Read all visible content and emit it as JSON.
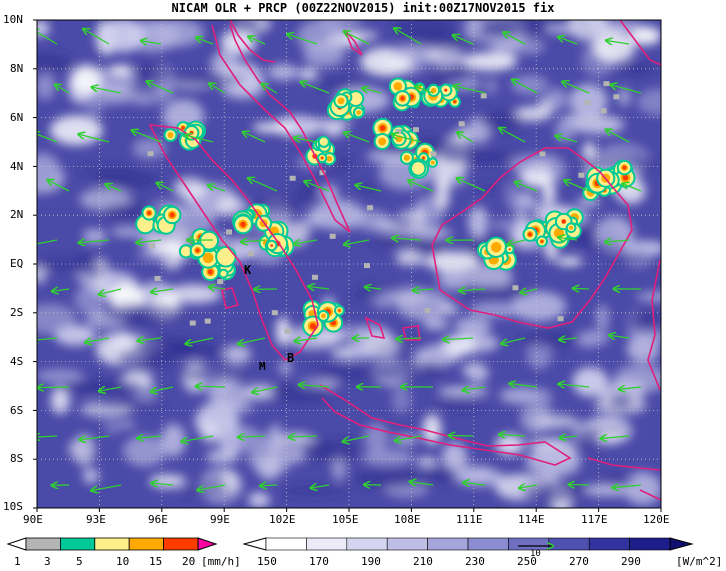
{
  "title": "NICAM OLR + PRCP (00Z22NOV2015) init:00Z17NOV2015 fix",
  "lat_labels": [
    "10N",
    "8N",
    "6N",
    "4N",
    "2N",
    "EQ",
    "2S",
    "4S",
    "6S",
    "8S",
    "10S"
  ],
  "lon_labels": [
    "90E",
    "93E",
    "96E",
    "99E",
    "102E",
    "105E",
    "108E",
    "111E",
    "114E",
    "117E",
    "120E"
  ],
  "markers": [
    "K",
    "M",
    "B"
  ],
  "precip_colorbar": {
    "ticks": [
      "1",
      "3",
      "5",
      "10",
      "15",
      "20"
    ],
    "unit": "[mm/h]",
    "colors": [
      "#b4b4b4",
      "#00c896",
      "#fff08c",
      "#ffaa00",
      "#ff3c00",
      "#ff00a0"
    ]
  },
  "olr_colorbar": {
    "ticks": [
      "150",
      "170",
      "190",
      "210",
      "230",
      "250",
      "270",
      "290"
    ],
    "unit": "[W/m^2]",
    "colors": [
      "#ffffff",
      "#ebebf7",
      "#d5d5ef",
      "#bebee6",
      "#a5a5db",
      "#8c8cd0",
      "#6f6fc2",
      "#5050b2",
      "#3333a0",
      "#1e1e8a",
      "#101070"
    ],
    "vector_ref": "10"
  },
  "colors": {
    "coast": "#e0207c",
    "wind": "#30d030",
    "frame": "#000000"
  }
}
